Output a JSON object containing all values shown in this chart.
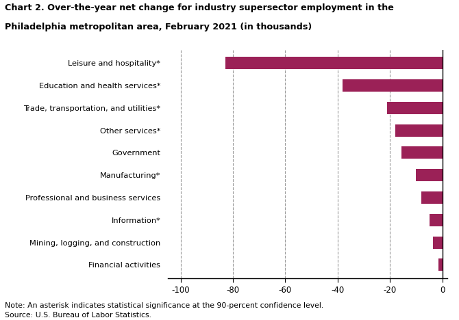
{
  "title_line1": "Chart 2. Over-the-year net change for industry supersector employment in the",
  "title_line2": "Philadelphia metropolitan area, February 2021 (in thousands)",
  "categories": [
    "Financial activities",
    "Mining, logging, and construction",
    "Information*",
    "Professional and business services",
    "Manufacturing*",
    "Government",
    "Other services*",
    "Trade, transportation, and utilities*",
    "Education and health services*",
    "Leisure and hospitality*"
  ],
  "values": [
    -1.5,
    -3.5,
    -5.0,
    -8.0,
    -10.0,
    -15.5,
    -18.0,
    -21.0,
    -38.0,
    -83.0
  ],
  "bar_color": "#9b2157",
  "xlim": [
    -105,
    2
  ],
  "xticks": [
    -100,
    -80,
    -60,
    -40,
    -20,
    0
  ],
  "grid_color": "#999999",
  "note": "Note: An asterisk indicates statistical significance at the 90-percent confidence level.",
  "source": "Source: U.S. Bureau of Labor Statistics.",
  "fig_width": 6.7,
  "fig_height": 4.68,
  "dpi": 100
}
